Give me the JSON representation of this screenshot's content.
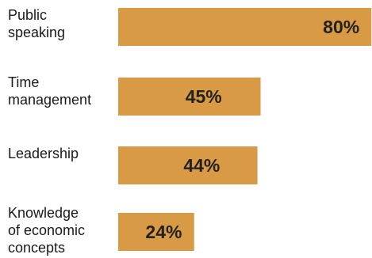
{
  "chart_data": {
    "type": "bar",
    "orientation": "horizontal",
    "title": "",
    "xlabel": "",
    "ylabel": "",
    "xlim": [
      0,
      100
    ],
    "grid": false,
    "legend": "none",
    "categories": [
      [
        "Public",
        "speaking"
      ],
      [
        "Time",
        "management"
      ],
      [
        "Leadership"
      ],
      [
        "Knowledge",
        "of economic",
        "concepts"
      ]
    ],
    "values": [
      80,
      45,
      44,
      24
    ],
    "value_labels": [
      "80%",
      "45%",
      "44%",
      "24%"
    ],
    "bar_color": "#d99a45",
    "value_label_color": "#222222",
    "category_label_color": "#1a1a1a"
  }
}
